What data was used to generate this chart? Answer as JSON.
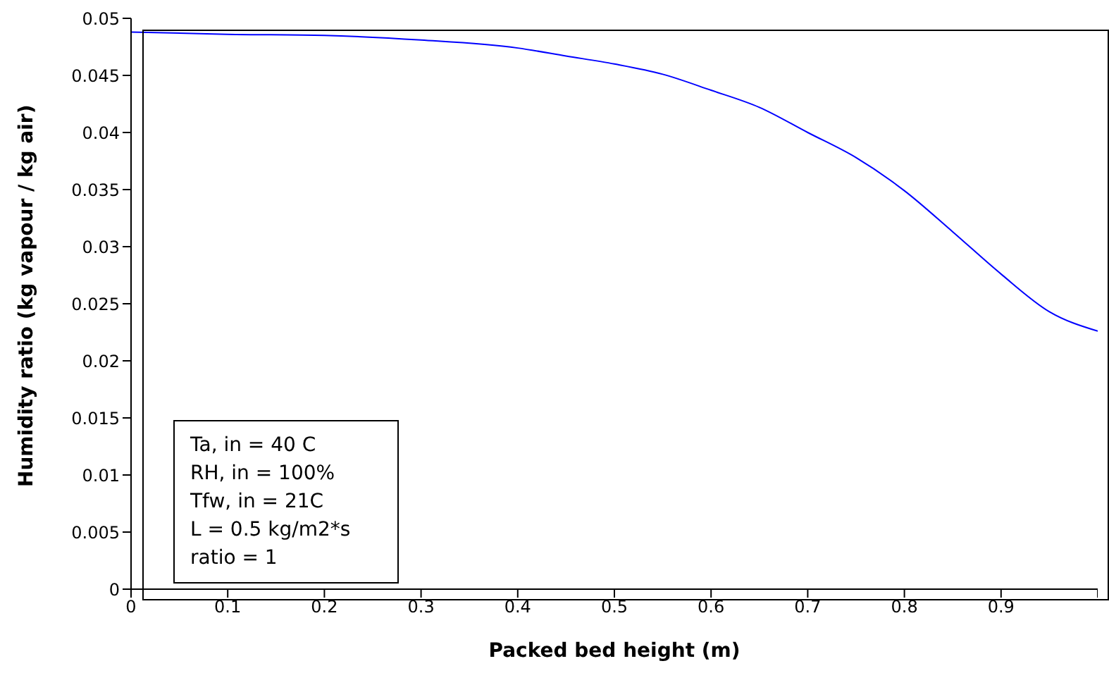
{
  "chart_data": {
    "type": "line",
    "xlabel": "Packed bed height (m)",
    "ylabel": "Humidity ratio (kg vapour / kg air)",
    "x": [
      0,
      0.1,
      0.2,
      0.3,
      0.4,
      0.45,
      0.5,
      0.55,
      0.6,
      0.65,
      0.7,
      0.75,
      0.8,
      0.85,
      0.9,
      0.95,
      1.0
    ],
    "series": [
      {
        "color": "#0000ff",
        "values": [
          0.0488,
          0.0486,
          0.0485,
          0.0481,
          0.0474,
          0.0467,
          0.046,
          0.0451,
          0.0437,
          0.0422,
          0.04,
          0.0378,
          0.0349,
          0.0313,
          0.0276,
          0.0243,
          0.0226
        ]
      }
    ],
    "xlim": [
      0,
      1
    ],
    "xticks": [
      0,
      0.1,
      0.2,
      0.3,
      0.4,
      0.5,
      0.6,
      0.7,
      0.8,
      0.9,
      {
        "value": 1,
        "label": null
      }
    ],
    "ylim": [
      0,
      0.05
    ],
    "yticks": [
      0,
      0.005,
      0.01,
      0.015,
      0.02,
      0.025,
      0.03,
      0.035,
      0.04,
      0.045,
      0.05
    ],
    "annotations": [
      "Ta, in = 40 C",
      "RH, in = 100%",
      "Tfw, in = 21C",
      "L = 0.5 kg/m2*s",
      "ratio = 1"
    ],
    "grid": false,
    "legend": false,
    "marker": "none",
    "line_style": "solid"
  }
}
